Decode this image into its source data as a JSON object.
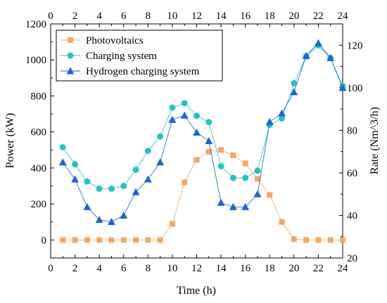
{
  "chart_data": {
    "type": "line",
    "title": "",
    "xlabel": "Time (h)",
    "ylabel": "Power (kW)",
    "y2label": "Rate (Nm^3/h)",
    "xlim": [
      0,
      24
    ],
    "ylim": [
      -100,
      1200
    ],
    "y2lim": [
      20,
      130
    ],
    "xticks": [
      0,
      2,
      4,
      6,
      8,
      10,
      12,
      14,
      16,
      18,
      20,
      22,
      24
    ],
    "yticks": [
      0,
      200,
      400,
      600,
      800,
      1000,
      1200
    ],
    "y2ticks": [
      20,
      40,
      60,
      80,
      100,
      120
    ],
    "grid": false,
    "legend_position": "top-left",
    "x": [
      1,
      2,
      3,
      4,
      5,
      6,
      7,
      8,
      9,
      10,
      11,
      12,
      13,
      14,
      15,
      16,
      17,
      18,
      19,
      20,
      21,
      22,
      23,
      24
    ],
    "series": [
      {
        "name": "Photovoltaics",
        "axis": "left",
        "marker": "square",
        "color": "#f0a868",
        "values": [
          0,
          0,
          0,
          0,
          0,
          0,
          0,
          0,
          0,
          90,
          320,
          445,
          490,
          500,
          470,
          425,
          340,
          250,
          100,
          5,
          0,
          0,
          0,
          0
        ]
      },
      {
        "name": "Charging system",
        "axis": "left",
        "marker": "circle",
        "color": "#2ec0c0",
        "values": [
          515,
          420,
          325,
          285,
          285,
          300,
          390,
          495,
          575,
          735,
          760,
          690,
          655,
          410,
          345,
          345,
          385,
          640,
          675,
          870,
          1020,
          1080,
          1010,
          855
        ]
      },
      {
        "name": "Hydrogen charging system",
        "axis": "right",
        "marker": "triangle",
        "color": "#1f64c8",
        "values": [
          65,
          57,
          44,
          38,
          37,
          40,
          51,
          57,
          65,
          85,
          87,
          79,
          75,
          46,
          44,
          44,
          50,
          84,
          88,
          98,
          115,
          121,
          114,
          100
        ]
      }
    ]
  }
}
